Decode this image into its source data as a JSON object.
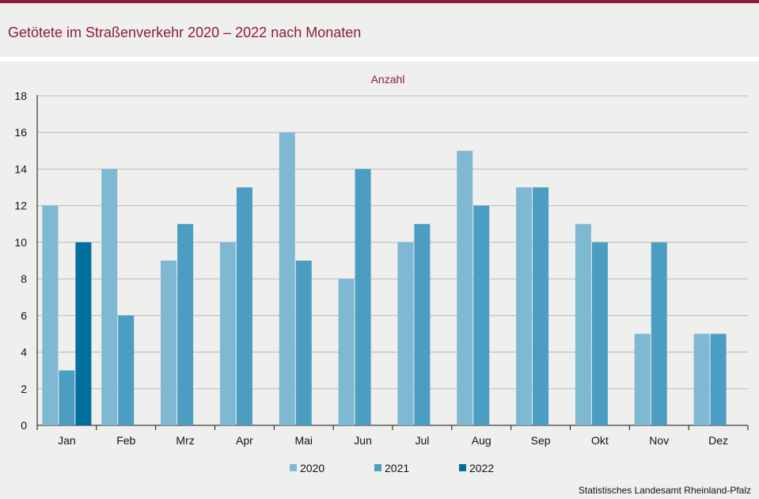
{
  "title": "Getötete im Straßenverkehr 2020 – 2022 nach Monaten",
  "source": "Statistisches Landesamt  Rheinland-Pfalz",
  "chart_data": {
    "type": "bar",
    "unit_label": "Anzahl",
    "categories": [
      "Jan",
      "Feb",
      "Mrz",
      "Apr",
      "Mai",
      "Jun",
      "Jul",
      "Aug",
      "Sep",
      "Okt",
      "Nov",
      "Dez"
    ],
    "series": [
      {
        "name": "2020",
        "color": "#7fb8d2",
        "values": [
          12,
          14,
          9,
          10,
          16,
          8,
          10,
          15,
          13,
          11,
          5,
          5
        ]
      },
      {
        "name": "2021",
        "color": "#4b9dc2",
        "values": [
          3,
          6,
          11,
          13,
          9,
          14,
          11,
          12,
          13,
          10,
          10,
          5
        ]
      },
      {
        "name": "2022",
        "color": "#006f9e",
        "values": [
          10,
          null,
          null,
          null,
          null,
          null,
          null,
          null,
          null,
          null,
          null,
          null
        ]
      }
    ],
    "ylim": [
      0,
      18
    ],
    "yticks": [
      0,
      2,
      4,
      6,
      8,
      10,
      12,
      14,
      16,
      18
    ],
    "grid": true,
    "legend": "bottom-center"
  }
}
